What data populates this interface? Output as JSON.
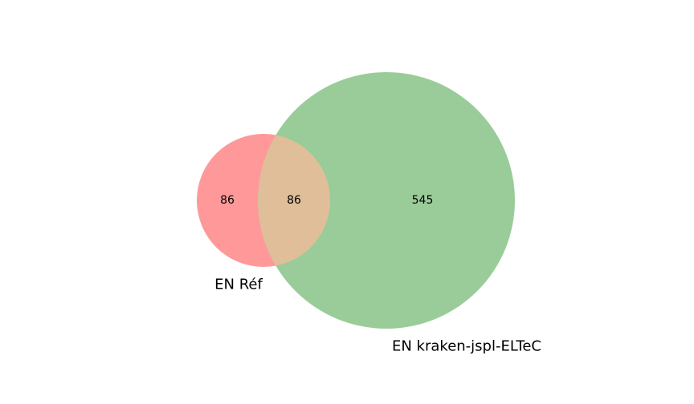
{
  "venn": {
    "sets": [
      {
        "label": "EN Réf",
        "count": "86",
        "color": "#ff9999"
      },
      {
        "label": "EN kraken-jspl-ELTeC",
        "count": "545",
        "color": "#99cc99"
      }
    ],
    "intersection": {
      "count": "86",
      "color": "#e0be99"
    }
  }
}
